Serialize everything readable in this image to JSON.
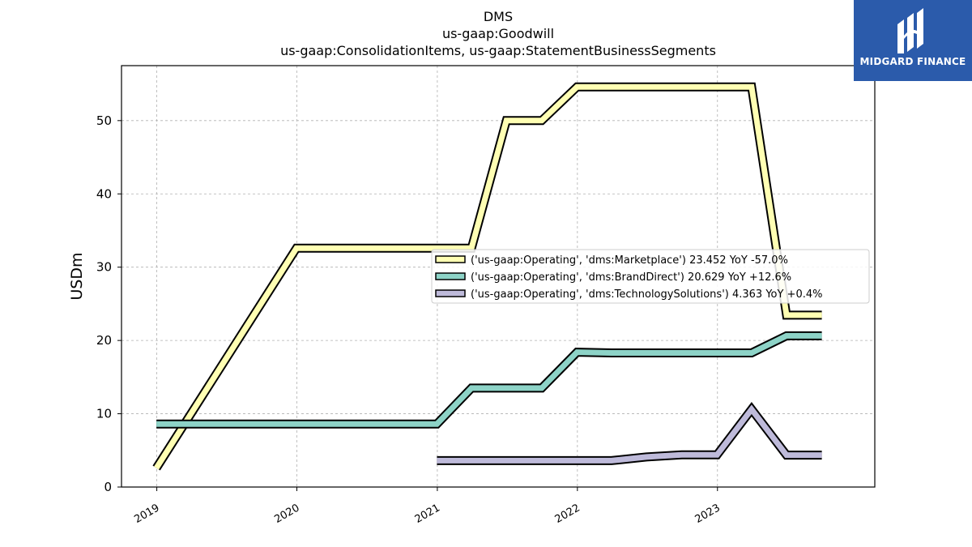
{
  "logo": {
    "text": "MIDGARD FINANCE",
    "icon": "midgard-finance-logo-icon",
    "background": "#2b5bab"
  },
  "chart_data": {
    "type": "line",
    "title": [
      "DMS",
      "us-gaap:Goodwill",
      "us-gaap:ConsolidationItems, us-gaap:StatementBusinessSegments"
    ],
    "xlabel": "",
    "ylabel": "USDm",
    "xlim": [
      "2018-10-01",
      "2024-02-15"
    ],
    "ylim": [
      0,
      57.5
    ],
    "x_ticks": [
      "2019",
      "2020",
      "2021",
      "2022",
      "2023"
    ],
    "x_tick_dates": [
      "2019-01-01",
      "2020-01-01",
      "2021-01-01",
      "2022-01-01",
      "2023-01-01"
    ],
    "y_ticks": [
      0,
      10,
      20,
      30,
      40,
      50
    ],
    "grid": true,
    "legend_position": "center-right",
    "series": [
      {
        "name": "('us-gaap:Operating', 'dms:Marketplace') 23.452 YoY -57.0%",
        "color": "#ffffb3",
        "points": [
          [
            "2018-12-31",
            2.6
          ],
          [
            "2019-12-31",
            32.6
          ],
          [
            "2021-03-31",
            32.6
          ],
          [
            "2021-06-30",
            50.0
          ],
          [
            "2021-09-30",
            50.0
          ],
          [
            "2021-12-31",
            54.6
          ],
          [
            "2023-03-31",
            54.6
          ],
          [
            "2023-06-30",
            23.45
          ],
          [
            "2023-09-30",
            23.45
          ]
        ]
      },
      {
        "name": "('us-gaap:Operating', 'dms:BrandDirect') 20.629 YoY +12.6%",
        "color": "#8dd3c7",
        "points": [
          [
            "2018-12-31",
            8.6
          ],
          [
            "2020-12-31",
            8.6
          ],
          [
            "2021-03-31",
            13.5
          ],
          [
            "2021-09-30",
            13.5
          ],
          [
            "2021-12-31",
            18.4
          ],
          [
            "2022-03-31",
            18.3
          ],
          [
            "2023-03-31",
            18.3
          ],
          [
            "2023-06-30",
            20.63
          ],
          [
            "2023-09-30",
            20.63
          ]
        ]
      },
      {
        "name": "('us-gaap:Operating', 'dms:TechnologySolutions') 4.363 YoY +0.4%",
        "color": "#bebada",
        "points": [
          [
            "2020-12-31",
            3.6
          ],
          [
            "2022-03-31",
            3.6
          ],
          [
            "2022-06-30",
            4.1
          ],
          [
            "2022-09-30",
            4.4
          ],
          [
            "2022-12-31",
            4.4
          ],
          [
            "2023-03-31",
            10.6
          ],
          [
            "2023-06-30",
            4.36
          ],
          [
            "2023-09-30",
            4.36
          ]
        ]
      }
    ]
  }
}
